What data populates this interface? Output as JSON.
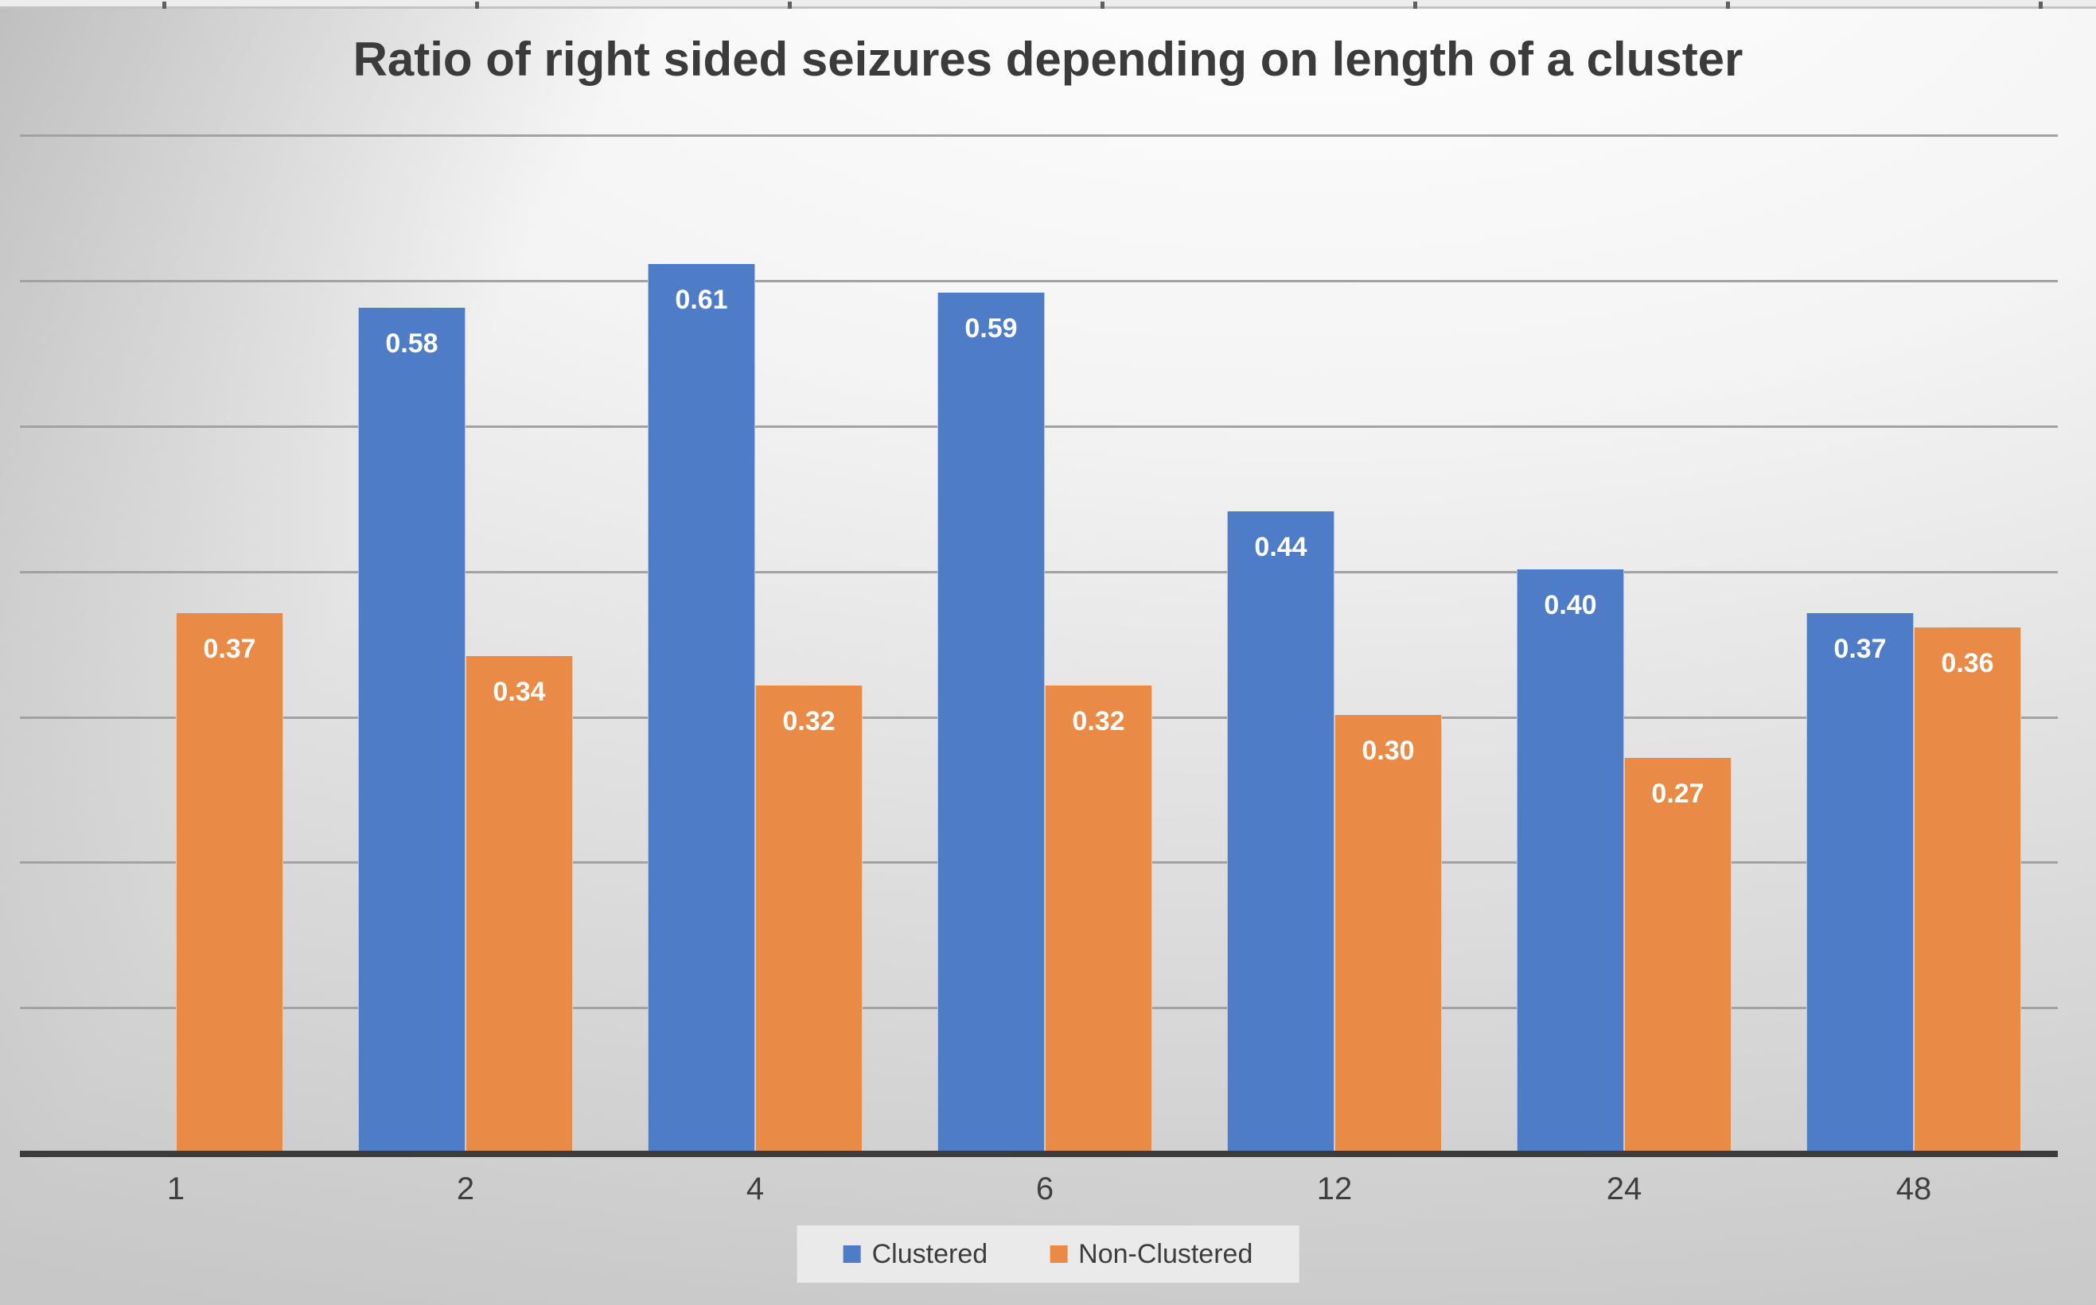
{
  "chart_data": {
    "type": "bar",
    "title": "Ratio of right sided seizures depending on length of a cluster",
    "categories": [
      "1",
      "2",
      "4",
      "6",
      "12",
      "24",
      "48"
    ],
    "series": [
      {
        "name": "Clustered",
        "color": "#4f7cc7",
        "values": [
          null,
          0.58,
          0.61,
          0.59,
          0.44,
          0.4,
          0.37
        ],
        "labels": [
          null,
          "0.58",
          "0.61",
          "0.59",
          "0.44",
          "0.40",
          "0.37"
        ]
      },
      {
        "name": "Non-Clustered",
        "color": "#e98b46",
        "values": [
          0.37,
          0.34,
          0.32,
          0.32,
          0.3,
          0.27,
          0.36
        ],
        "labels": [
          "0.37",
          "0.34",
          "0.32",
          "0.32",
          "0.30",
          "0.27",
          "0.36"
        ]
      }
    ],
    "xlabel": "",
    "ylabel": "",
    "ylim": [
      0,
      0.7
    ],
    "gridline_step": 0.1,
    "grid": true,
    "y_axis_labels_visible": false,
    "data_label_position": "inside-end",
    "legend_position": "bottom"
  },
  "legend": {
    "items": [
      {
        "label": "Clustered",
        "color": "#4f7cc7"
      },
      {
        "label": "Non-Clustered",
        "color": "#e98b46"
      }
    ]
  },
  "decorations": {
    "top_edge_tick_xs": [
      204,
      597,
      990,
      1383,
      1776,
      2169,
      2562
    ]
  },
  "colors": {
    "bar_clustered": "#4f7cc7",
    "bar_non_clustered": "#e98b46",
    "title_text": "#3b3b3b",
    "axis_line": "#3c3c3c",
    "gridline": "#a2a2a2",
    "data_label_text": "#ffffff",
    "tick_label_text": "#3f3f3f",
    "legend_background": "#eaeaea"
  }
}
